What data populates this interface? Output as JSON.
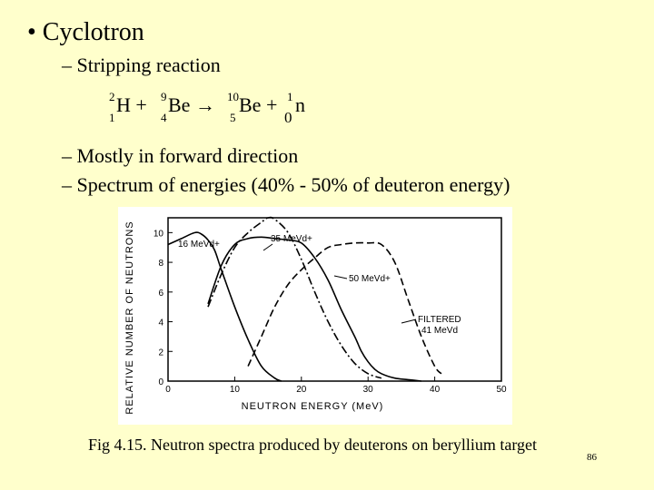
{
  "slide": {
    "bullet1": "• Cyclotron",
    "sub1": "– Stripping reaction",
    "sub2": "– Mostly in forward direction",
    "sub3": "– Spectrum of energies (40% - 50% of deuteron energy)",
    "caption": "Fig 4.15. Neutron spectra produced by deuterons on beryllium target",
    "page_number": "86"
  },
  "equation": {
    "t1_mass": "2",
    "t1_charge": "1",
    "t1_sym": "H +",
    "t2_mass": "9",
    "t2_charge": "4",
    "t2_sym": "Be →",
    "t3_mass": "10",
    "t3_charge": "5",
    "t3_sym": "Be +",
    "t4_mass": "1",
    "t4_charge": "0",
    "t4_sym": "n"
  },
  "chart_data": {
    "type": "line",
    "title": "",
    "xlabel": "NEUTRON  ENERGY  (MeV)",
    "ylabel": "RELATIVE NUMBER OF NEUTRONS",
    "xlim": [
      0,
      50
    ],
    "ylim": [
      0,
      11
    ],
    "xticks": [
      "0",
      "10",
      "20",
      "30",
      "40",
      "50"
    ],
    "yticks": [
      "0",
      "2",
      "4",
      "6",
      "8",
      "10"
    ],
    "grid": false,
    "series": [
      {
        "name": "16 MeV d+",
        "style": "solid",
        "x": [
          0,
          2,
          4,
          5,
          6,
          7,
          8,
          10,
          12,
          14,
          16,
          17
        ],
        "y": [
          9.2,
          9.6,
          10.0,
          9.9,
          9.5,
          8.8,
          7.5,
          5.0,
          2.8,
          1.0,
          0.2,
          0.0
        ]
      },
      {
        "name": "35 MeV d+",
        "style": "dash-dot",
        "x": [
          6,
          8,
          10,
          12,
          14,
          15,
          16,
          18,
          20,
          22,
          24,
          26,
          28,
          30,
          32
        ],
        "y": [
          5.0,
          7.2,
          9.0,
          10.0,
          10.7,
          11.0,
          10.9,
          10.0,
          8.2,
          6.0,
          4.0,
          2.4,
          1.2,
          0.5,
          0.2
        ]
      },
      {
        "name": "50 MeV d+",
        "style": "dashed",
        "x": [
          12,
          14,
          16,
          18,
          20,
          22,
          24,
          26,
          28,
          30,
          32,
          34,
          36,
          38,
          40,
          41
        ],
        "y": [
          1.0,
          3.0,
          5.0,
          6.5,
          7.5,
          8.3,
          9.0,
          9.2,
          9.3,
          9.3,
          9.2,
          8.0,
          5.5,
          3.0,
          1.0,
          0.5
        ]
      },
      {
        "name": "FILTERED 41 MeV d",
        "style": "solid",
        "x": [
          6,
          8,
          10,
          12,
          14,
          16,
          18,
          20,
          22,
          24,
          26,
          28,
          29,
          30,
          31,
          32,
          34,
          36,
          38
        ],
        "y": [
          5.2,
          7.8,
          9.2,
          9.6,
          9.7,
          9.6,
          9.5,
          9.3,
          8.3,
          6.8,
          4.8,
          3.0,
          2.0,
          1.3,
          0.8,
          0.5,
          0.2,
          0.1,
          0.0
        ]
      }
    ],
    "annotations": [
      "16 MeVd+",
      "35 MeVd+",
      "50 MeVd+",
      "FILTERED",
      "41 MeVd"
    ]
  }
}
